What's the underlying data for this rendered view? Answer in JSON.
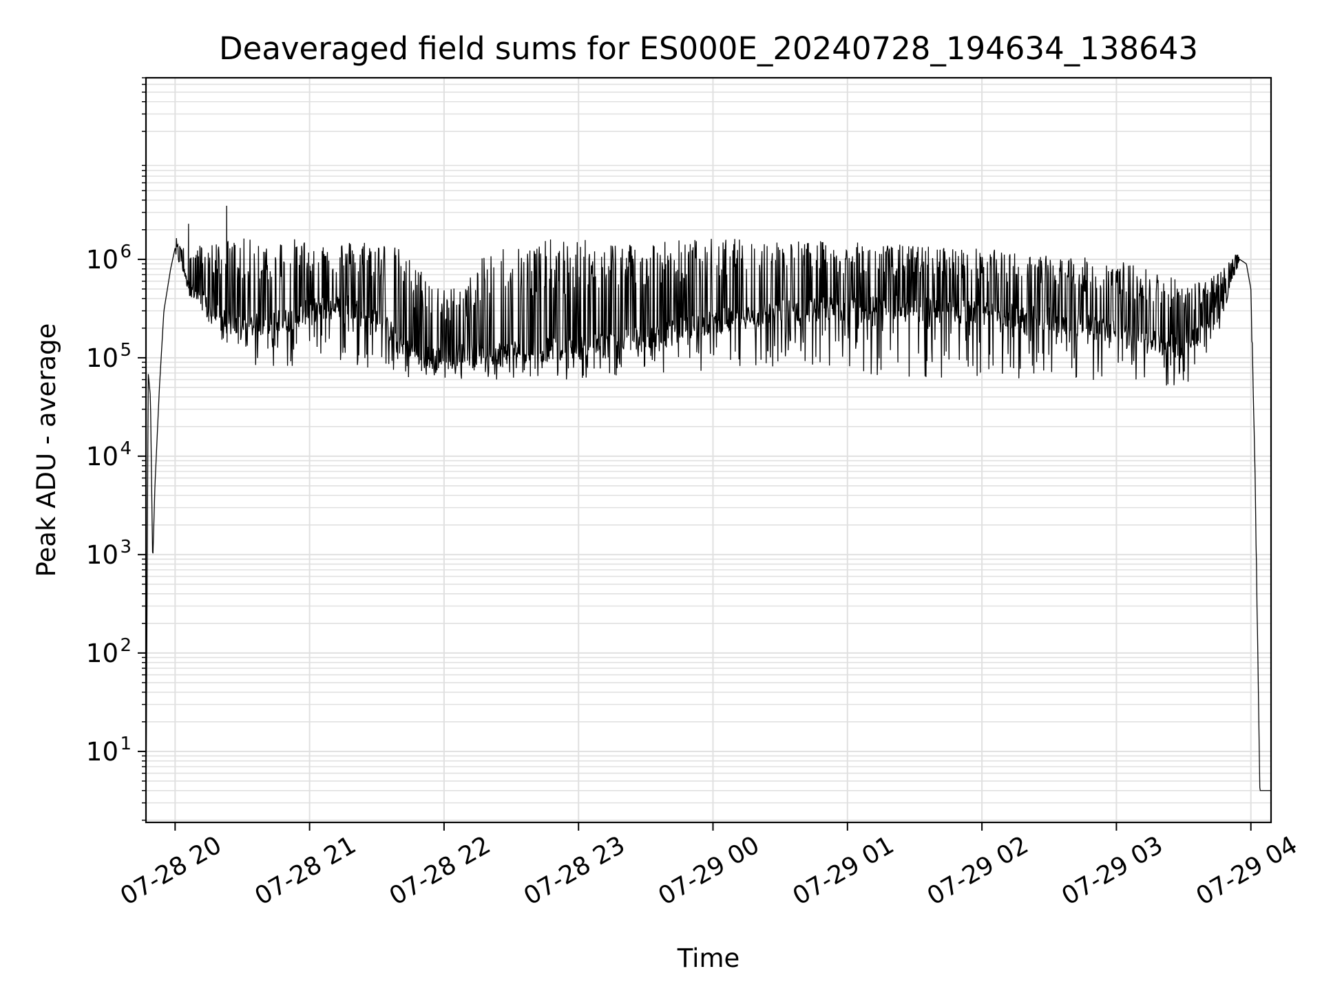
{
  "chart_data": {
    "type": "line",
    "title": "Deaveraged field sums for ES000E_20240728_194634_138643",
    "xlabel": "Time",
    "ylabel": "Peak ADU - average",
    "yscale": "log",
    "ylim": [
      1.9,
      70000000
    ],
    "xlim": [
      "2024-07-28 19:47",
      "2024-07-29 04:09"
    ],
    "grid": true,
    "grid_minor": true,
    "x_ticks": [
      {
        "value": "2024-07-28 20:00",
        "label": "07-28 20"
      },
      {
        "value": "2024-07-28 21:00",
        "label": "07-28 21"
      },
      {
        "value": "2024-07-28 22:00",
        "label": "07-28 22"
      },
      {
        "value": "2024-07-28 23:00",
        "label": "07-28 23"
      },
      {
        "value": "2024-07-29 00:00",
        "label": "07-29 00"
      },
      {
        "value": "2024-07-29 01:00",
        "label": "07-29 01"
      },
      {
        "value": "2024-07-29 02:00",
        "label": "07-29 02"
      },
      {
        "value": "2024-07-29 03:00",
        "label": "07-29 03"
      },
      {
        "value": "2024-07-29 04:00",
        "label": "07-29 04"
      }
    ],
    "y_ticks": [
      {
        "value": 10,
        "base": "10",
        "exp": "1"
      },
      {
        "value": 100,
        "base": "10",
        "exp": "2"
      },
      {
        "value": 1000,
        "base": "10",
        "exp": "3"
      },
      {
        "value": 10000,
        "base": "10",
        "exp": "4"
      },
      {
        "value": 100000,
        "base": "10",
        "exp": "5"
      },
      {
        "value": 1000000,
        "base": "10",
        "exp": "6"
      }
    ],
    "line_color": "#000000",
    "grid_color": "#e0e0e0",
    "series": [
      {
        "x": [
          "2024-07-28 19:47",
          "2024-07-28 19:48",
          "2024-07-28 19:49",
          "2024-07-28 19:50",
          "2024-07-28 19:51",
          "2024-07-28 19:53",
          "2024-07-28 19:55",
          "2024-07-28 19:58",
          "2024-07-28 20:00",
          "2024-07-28 20:03",
          "2024-07-28 20:05",
          "2024-07-28 20:08",
          "2024-07-28 20:10",
          "2024-07-28 20:13",
          "2024-07-28 20:15",
          "2024-07-28 20:20",
          "2024-07-28 20:25",
          "2024-07-28 20:30",
          "2024-07-28 20:35",
          "2024-07-28 20:40",
          "2024-07-28 20:45",
          "2024-07-28 20:50",
          "2024-07-28 21:00",
          "2024-07-28 21:15",
          "2024-07-28 21:30",
          "2024-07-28 21:40",
          "2024-07-28 21:50",
          "2024-07-28 22:00",
          "2024-07-28 22:10",
          "2024-07-28 22:20",
          "2024-07-28 22:30",
          "2024-07-28 22:45",
          "2024-07-28 23:00",
          "2024-07-28 23:30",
          "2024-07-29 00:00",
          "2024-07-29 00:30",
          "2024-07-29 01:00",
          "2024-07-29 01:30",
          "2024-07-29 02:00",
          "2024-07-29 02:30",
          "2024-07-29 03:00",
          "2024-07-29 03:15",
          "2024-07-29 03:25",
          "2024-07-29 03:35",
          "2024-07-29 03:45",
          "2024-07-29 03:50",
          "2024-07-29 03:53",
          "2024-07-29 03:55",
          "2024-07-29 03:58",
          "2024-07-29 04:00",
          "2024-07-29 04:02",
          "2024-07-29 04:04",
          "2024-07-29 04:06",
          "2024-07-29 04:09"
        ],
        "y": [
          2,
          70000,
          40000,
          800,
          5000,
          50000,
          300000,
          800000,
          1300000,
          1000000,
          700000,
          500000,
          400000,
          350000,
          300000,
          250000,
          220000,
          200000,
          210000,
          220000,
          230000,
          240000,
          300000,
          350000,
          250000,
          150000,
          100000,
          100000,
          110000,
          110000,
          115000,
          120000,
          125000,
          160000,
          230000,
          300000,
          320000,
          320000,
          280000,
          250000,
          180000,
          150000,
          130000,
          160000,
          300000,
          500000,
          800000,
          1000000,
          900000,
          500000,
          5000,
          4,
          4,
          4
        ],
        "min_y": [
          2,
          70000,
          40000,
          800,
          5000,
          50000,
          300000,
          800000,
          1100000,
          800000,
          500000,
          350000,
          300000,
          250000,
          200000,
          120000,
          100000,
          90000,
          80000,
          80000,
          80000,
          80000,
          90000,
          90000,
          70000,
          60000,
          60000,
          60000,
          60000,
          60000,
          60000,
          60000,
          60000,
          70000,
          70000,
          70000,
          70000,
          60000,
          60000,
          55000,
          55000,
          50000,
          50000,
          55000,
          150000,
          400000,
          700000,
          900000,
          800000,
          400000,
          3000,
          4,
          4,
          4
        ],
        "max_y": [
          2,
          70000,
          40000,
          800,
          5000,
          50000,
          300000,
          800000,
          1400000,
          1400000,
          2000000,
          1300000,
          1400000,
          1500000,
          1500000,
          1600000,
          1600000,
          1650000,
          1600000,
          1600000,
          1650000,
          1650000,
          1600000,
          1550000,
          1650000,
          1300000,
          800000,
          500000,
          600000,
          1300000,
          1500000,
          1600000,
          1600000,
          1600000,
          1650000,
          1600000,
          1500000,
          1400000,
          1300000,
          1100000,
          1000000,
          800000,
          700000,
          600000,
          700000,
          1000000,
          1200000,
          1100000,
          900000,
          500000,
          5000,
          4,
          4,
          4
        ],
        "spikes": [
          {
            "x": "2024-07-28 20:06",
            "y": 2300000
          },
          {
            "x": "2024-07-28 20:23",
            "y": 3500000
          }
        ]
      }
    ]
  }
}
